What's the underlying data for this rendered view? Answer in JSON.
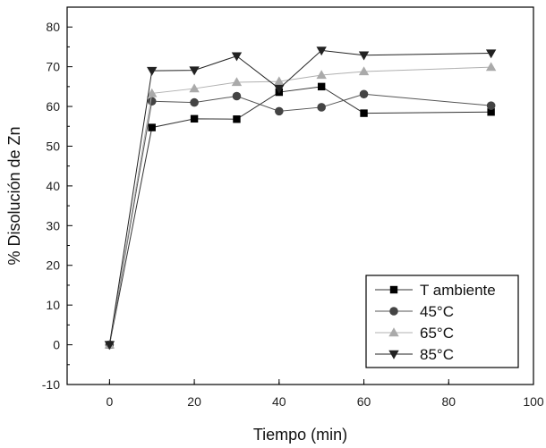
{
  "chart_data": {
    "type": "line",
    "title": "",
    "xlabel": "Tiempo (min)",
    "ylabel": "% Disolución de Zn",
    "xlim": [
      -10,
      100
    ],
    "ylim": [
      -10,
      85
    ],
    "xticks": [
      0,
      20,
      40,
      60,
      80,
      100
    ],
    "yticks": [
      -10,
      0,
      10,
      20,
      30,
      40,
      50,
      60,
      70,
      80
    ],
    "grid": false,
    "legend_position": "bottom-right",
    "x": [
      0,
      10,
      20,
      30,
      40,
      50,
      60,
      90
    ],
    "series": [
      {
        "name": "T ambiente",
        "marker": "square",
        "color": "#000000",
        "line_color": "#333333",
        "values": [
          0,
          54.7,
          56.9,
          56.8,
          63.6,
          65.0,
          58.3,
          58.6
        ]
      },
      {
        "name": "45°C",
        "marker": "circle",
        "color": "#444444",
        "line_color": "#555555",
        "values": [
          0,
          61.3,
          61.0,
          62.6,
          58.8,
          59.8,
          63.1,
          60.2
        ]
      },
      {
        "name": "65°C",
        "marker": "triangle-up",
        "color": "#aaaaaa",
        "line_color": "#b0b0b0",
        "values": [
          0,
          63.3,
          64.5,
          66.1,
          66.3,
          67.9,
          68.8,
          69.9
        ]
      },
      {
        "name": "85°C",
        "marker": "triangle-down",
        "color": "#222222",
        "line_color": "#222222",
        "values": [
          0,
          69.0,
          69.1,
          72.7,
          64.5,
          74.1,
          72.9,
          73.4
        ]
      }
    ]
  }
}
